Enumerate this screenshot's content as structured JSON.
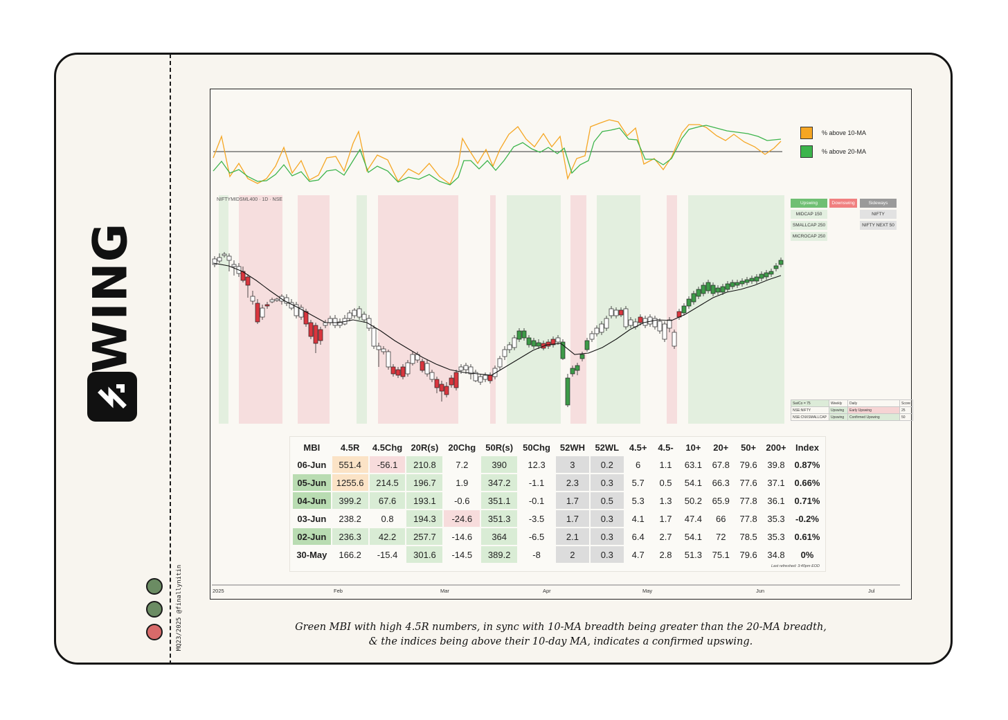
{
  "brand": {
    "name": "SWING",
    "credit": "MQ23/2025 @finallynitin"
  },
  "status_dots": [
    {
      "color": "#6b8c63"
    },
    {
      "color": "#6b8c63"
    },
    {
      "color": "#d86a6a"
    }
  ],
  "caption": {
    "line1": "Green MBI with high 4.5R numbers, in sync with 10-MA breadth being greater than the 20-MA breadth,",
    "line2": "& the indices being above their 10-day MA, indicates a confirmed upswing."
  },
  "breadth_legend": [
    {
      "label": "% above 10-MA",
      "color": "#f5a623"
    },
    {
      "label": "% above 20-MA",
      "color": "#3cb44b"
    }
  ],
  "price_chart": {
    "ticker": "NIFTYMIDSML400 · 1D · NSE",
    "months": [
      "2025",
      "Feb",
      "Mar",
      "Apr",
      "May",
      "Jun",
      "Jul"
    ]
  },
  "swing_panel": {
    "headers": [
      {
        "label": "Upswing",
        "color": "#6fbf73"
      },
      {
        "label": "Downswing",
        "color": "#f08080"
      },
      {
        "label": "Sideways",
        "color": "#9a9a9a"
      }
    ],
    "upswing": [
      "MIDCAP 150",
      "SMALLCAP 250",
      "MICROCAP 250"
    ],
    "sideways": [
      "NIFTY",
      "NIFTY NEXT 50"
    ]
  },
  "score_table": {
    "header": [
      "SwiCo = 75",
      "Weekly",
      "Daily",
      "Score"
    ],
    "rows": [
      [
        "NSE:NIFTY",
        "Upswing",
        "Early Upswing",
        "25"
      ],
      [
        "NSE:CNXSMALLCAP",
        "Upswing",
        "Confirmed Upswing",
        "50"
      ]
    ]
  },
  "mbi_table": {
    "columns": [
      "MBI",
      "4.5R",
      "4.5Chg",
      "20R(s)",
      "20Chg",
      "50R(s)",
      "50Chg",
      "52WH",
      "52WL",
      "4.5+",
      "4.5-",
      "10+",
      "20+",
      "50+",
      "200+",
      "Index"
    ],
    "rows": [
      [
        "06-Jun",
        "551.4",
        "-56.1",
        "210.8",
        "7.2",
        "390",
        "12.3",
        "3",
        "0.2",
        "6",
        "1.1",
        "63.1",
        "67.8",
        "79.6",
        "39.8",
        "0.87%"
      ],
      [
        "05-Jun",
        "1255.6",
        "214.5",
        "196.7",
        "1.9",
        "347.2",
        "-1.1",
        "2.3",
        "0.3",
        "5.7",
        "0.5",
        "54.1",
        "66.3",
        "77.6",
        "37.1",
        "0.66%"
      ],
      [
        "04-Jun",
        "399.2",
        "67.6",
        "193.1",
        "-0.6",
        "351.1",
        "-0.1",
        "1.7",
        "0.5",
        "5.3",
        "1.3",
        "50.2",
        "65.9",
        "77.8",
        "36.1",
        "0.71%"
      ],
      [
        "03-Jun",
        "238.2",
        "0.8",
        "194.3",
        "-24.6",
        "351.3",
        "-3.5",
        "1.7",
        "0.3",
        "4.1",
        "1.7",
        "47.4",
        "66",
        "77.8",
        "35.3",
        "-0.2%"
      ],
      [
        "02-Jun",
        "236.3",
        "42.2",
        "257.7",
        "-14.6",
        "364",
        "-6.5",
        "2.1",
        "0.3",
        "6.4",
        "2.7",
        "54.1",
        "72",
        "78.5",
        "35.3",
        "0.61%"
      ],
      [
        "30-May",
        "166.2",
        "-15.4",
        "301.6",
        "-14.5",
        "389.2",
        "-8",
        "2",
        "0.3",
        "4.7",
        "2.8",
        "51.3",
        "75.1",
        "79.6",
        "34.8",
        "0%"
      ]
    ],
    "last_refreshed": "Last refreshed: 3:40pm EOD"
  }
}
